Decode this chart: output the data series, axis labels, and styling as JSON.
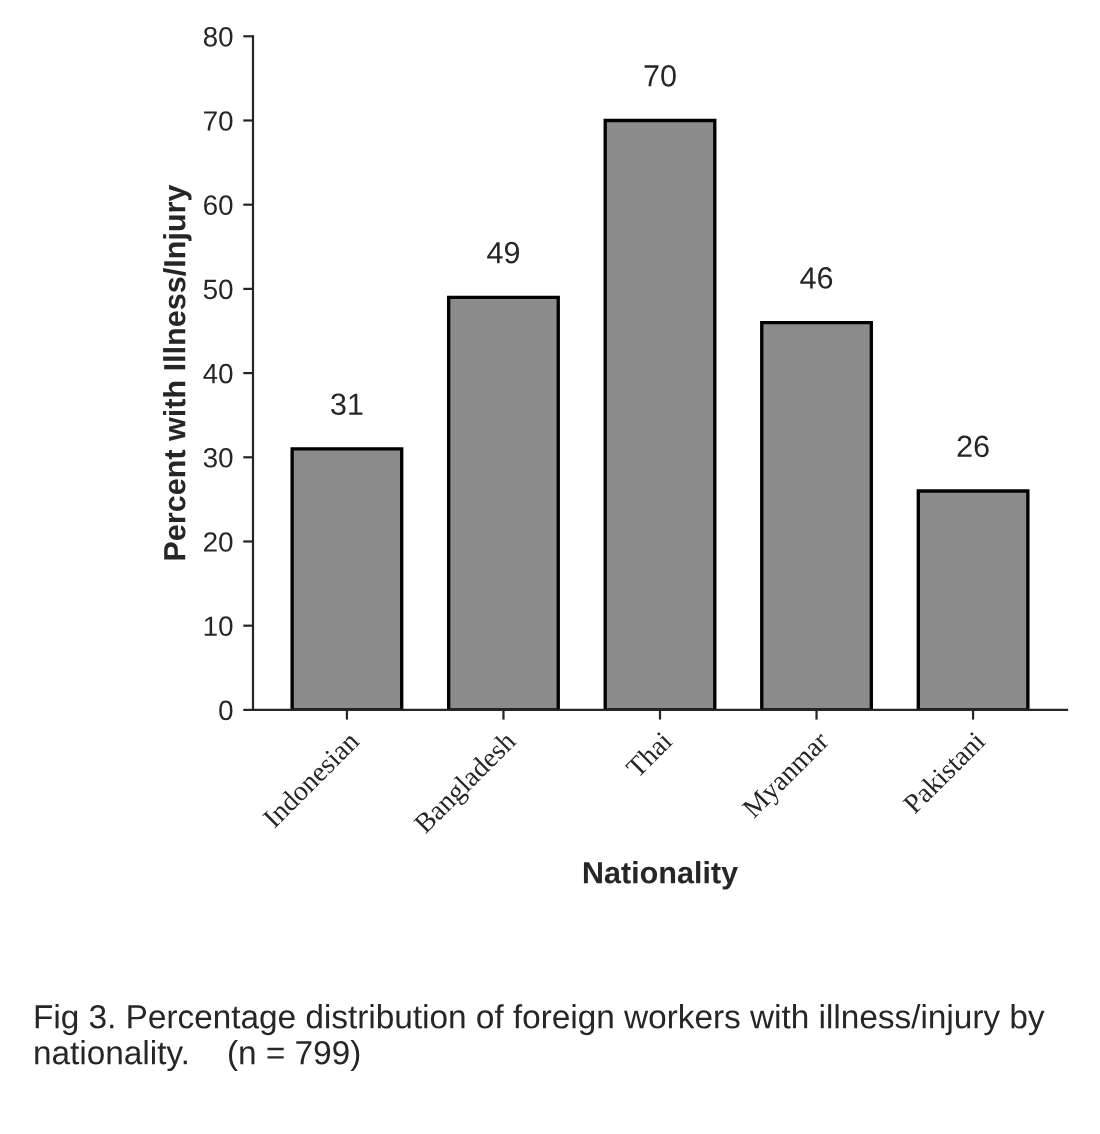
{
  "chart_data": {
    "type": "bar",
    "xlabel": "Nationality",
    "ylabel": "Percent with Illness/Injury",
    "categories": [
      "Indonesian",
      "Bangladesh",
      "Thai",
      "Myanmar",
      "Pakistani"
    ],
    "values": [
      31,
      49,
      70,
      46,
      26
    ],
    "color": "#8c8c8c",
    "data_labels": true,
    "ylim": [
      0,
      80
    ],
    "yticks": [
      0,
      10,
      20,
      30,
      40,
      50,
      60,
      70,
      80
    ],
    "grid": false,
    "legend": false,
    "annotations": [
      "Fig 3. Percentage distribution of foreign workers with illness/injury by nationality.    (n = 799)"
    ]
  }
}
